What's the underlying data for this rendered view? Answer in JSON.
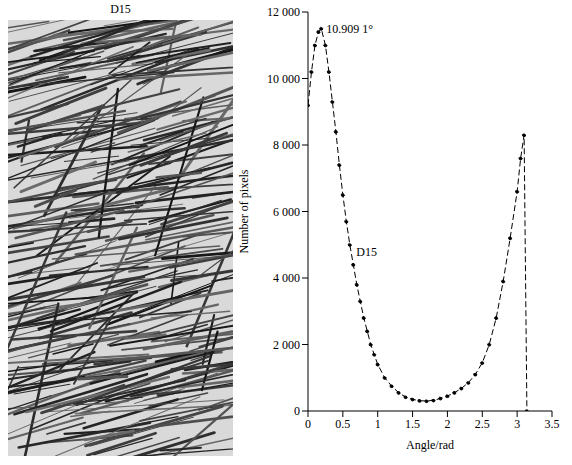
{
  "image_title": "D15",
  "chart_data": {
    "type": "line",
    "x_label": "Angle/rad",
    "y_label": "Number of pixels",
    "x": [
      0,
      0.05,
      0.1,
      0.15,
      0.19,
      0.25,
      0.3,
      0.35,
      0.4,
      0.45,
      0.5,
      0.55,
      0.6,
      0.65,
      0.7,
      0.75,
      0.8,
      0.85,
      0.9,
      0.95,
      1.0,
      1.1,
      1.2,
      1.3,
      1.4,
      1.5,
      1.6,
      1.7,
      1.8,
      1.9,
      2.0,
      2.1,
      2.2,
      2.3,
      2.4,
      2.5,
      2.6,
      2.7,
      2.8,
      2.9,
      3.0,
      3.05,
      3.1,
      3.14
    ],
    "values": [
      9200,
      10200,
      11000,
      11400,
      11500,
      11000,
      10200,
      9300,
      8400,
      7400,
      6500,
      5700,
      5000,
      4400,
      3800,
      3300,
      2800,
      2400,
      2000,
      1700,
      1400,
      1000,
      750,
      550,
      420,
      350,
      310,
      300,
      320,
      380,
      450,
      550,
      680,
      850,
      1100,
      1450,
      2000,
      2800,
      3900,
      5200,
      6600,
      7600,
      8300,
      0
    ],
    "color": "#000000",
    "marker": "circle",
    "line_style": "dashed",
    "xlim": [
      0,
      3.5
    ],
    "xticks": [
      0,
      0.5,
      1,
      1.5,
      2,
      2.5,
      3,
      3.5
    ],
    "ylim": [
      0,
      12000
    ],
    "yticks": [
      0,
      {
        "value": 2000,
        "label": "2 000"
      },
      {
        "value": 4000,
        "label": "4 000"
      },
      {
        "value": 6000,
        "label": "6 000"
      },
      {
        "value": 8000,
        "label": "8 000"
      },
      {
        "value": 10000,
        "label": "10 000"
      },
      {
        "value": 12000,
        "label": "12 000"
      }
    ],
    "annotations": [
      {
        "text": "10.909 1°",
        "x": 0.19,
        "y": 11500
      },
      {
        "text": "D15",
        "x": 0.62,
        "y": 4800
      }
    ]
  }
}
